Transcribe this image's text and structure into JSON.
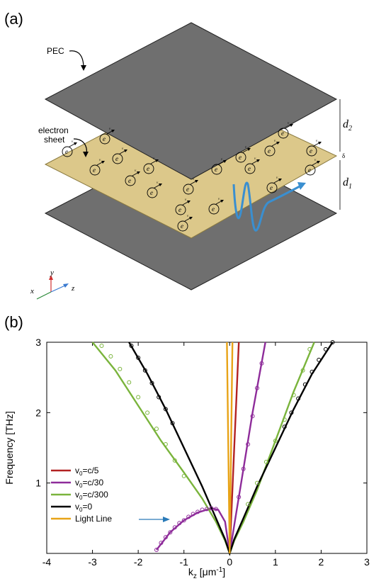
{
  "panel_a": {
    "label": "(a)",
    "pec_label": "PEC",
    "electron_sheet_label": "electron\nsheet",
    "electron_symbol": "e",
    "velocity_symbol": "v",
    "d2_label": "d",
    "d2_sub": "2",
    "d1_label": "d",
    "d1_sub": "1",
    "delta_label": "δ",
    "axes": {
      "x": "x",
      "y": "y",
      "z": "z"
    },
    "colors": {
      "plate": "#6f6f6f",
      "sheet": "#dcc88a",
      "wave": "#3a8fd0"
    }
  },
  "panel_b": {
    "label": "(b)"
  },
  "chart_data": {
    "type": "line",
    "title": "",
    "xlabel": "k",
    "xlabel_sub": "z",
    "xlabel_units": "[μm",
    "xlabel_units_sup": "-1",
    "xlabel_units_close": "]",
    "ylabel": "Frequency  [THz]",
    "xlim": [
      -4,
      3
    ],
    "ylim": [
      0,
      3
    ],
    "xticks": [
      -4,
      -3,
      -2,
      -1,
      0,
      1,
      2,
      3
    ],
    "yticks": [
      1,
      2,
      3
    ],
    "grid": false,
    "legend_position": "lower-left",
    "series": [
      {
        "name": "v",
        "sub": "0",
        "suffix": "=c/5",
        "color": "#b22222",
        "x": [
          0,
          0.05,
          0.1,
          0.15,
          0.2
        ],
        "y": [
          0,
          0.75,
          1.5,
          2.25,
          3.0
        ]
      },
      {
        "name": "v",
        "sub": "0",
        "suffix": "=c/30",
        "color": "#8e2c9a",
        "x": [
          -1.6,
          -1.3,
          -1.0,
          -0.7,
          -0.4,
          -0.25,
          -0.1,
          0,
          0.1,
          0.3,
          0.5,
          0.78
        ],
        "y": [
          0.05,
          0.3,
          0.47,
          0.58,
          0.64,
          0.62,
          0.45,
          0,
          0.4,
          1.2,
          2.0,
          3.0
        ]
      },
      {
        "name": "v",
        "sub": "0",
        "suffix": "=c/300",
        "color": "#7ab43c",
        "x": [
          -3.0,
          -2.5,
          -2.0,
          -1.5,
          -1.0,
          -0.6,
          -0.3,
          -0.1,
          0,
          0.1,
          0.3,
          0.6,
          1.0,
          1.4,
          1.85
        ],
        "y": [
          3.0,
          2.6,
          2.1,
          1.6,
          1.15,
          0.78,
          0.45,
          0.18,
          0,
          0.18,
          0.45,
          0.9,
          1.6,
          2.3,
          3.0
        ]
      },
      {
        "name": "v",
        "sub": "0",
        "suffix": "=0",
        "color": "#000000",
        "x": [
          -2.2,
          -1.8,
          -1.4,
          -1.0,
          -0.6,
          -0.3,
          -0.1,
          0,
          0.1,
          0.3,
          0.6,
          1.0,
          1.4,
          1.8,
          2.25
        ],
        "y": [
          3.0,
          2.55,
          2.05,
          1.5,
          0.95,
          0.5,
          0.2,
          0,
          0.2,
          0.5,
          0.95,
          1.5,
          2.05,
          2.55,
          3.0
        ]
      },
      {
        "name": "Light Line",
        "sub": "",
        "suffix": "",
        "color": "#e8a317",
        "x": [
          -0.06,
          0,
          0.06
        ],
        "y": [
          3.0,
          0,
          3.0
        ]
      }
    ],
    "markers": [
      {
        "series": "=c/30",
        "color": "#8e2c9a",
        "x": [
          -1.6,
          -1.5,
          -1.4,
          -1.3,
          -1.2,
          -1.1,
          -1.0,
          -0.9,
          -0.8,
          -0.7,
          -0.6,
          -0.5,
          -0.4,
          -0.3,
          0.2,
          0.3,
          0.4,
          0.5,
          0.6,
          0.7
        ],
        "y": [
          0.05,
          0.15,
          0.23,
          0.3,
          0.37,
          0.43,
          0.47,
          0.52,
          0.56,
          0.59,
          0.62,
          0.63,
          0.64,
          0.63,
          0.8,
          1.2,
          1.55,
          1.95,
          2.35,
          2.7
        ]
      },
      {
        "series": "=c/300",
        "color": "#7ab43c",
        "x": [
          -2.8,
          -2.6,
          -2.4,
          -2.2,
          -2.0,
          -1.8,
          -1.6,
          -1.4,
          -1.2,
          -1.0,
          0.4,
          0.6,
          0.8,
          1.0,
          1.2,
          1.4,
          1.6,
          1.75
        ],
        "y": [
          2.95,
          2.8,
          2.62,
          2.43,
          2.22,
          2.0,
          1.77,
          1.55,
          1.32,
          1.1,
          0.7,
          1.0,
          1.3,
          1.6,
          1.9,
          2.25,
          2.6,
          2.9
        ]
      },
      {
        "series": "=0",
        "color": "#000000",
        "x": [
          -2.15,
          -2.0,
          -1.85,
          -1.7,
          -1.55,
          -1.4,
          -1.25,
          1.2,
          1.35,
          1.5,
          1.65,
          1.8,
          1.95,
          2.1,
          2.25
        ],
        "y": [
          2.95,
          2.78,
          2.6,
          2.42,
          2.22,
          2.05,
          1.85,
          1.8,
          2.0,
          2.2,
          2.4,
          2.58,
          2.75,
          2.9,
          3.0
        ]
      }
    ],
    "annotation_arrow": {
      "from": [
        -2.5,
        0.5
      ],
      "to": [
        -1.5,
        0.5
      ],
      "color": "#2a7ab8"
    }
  }
}
